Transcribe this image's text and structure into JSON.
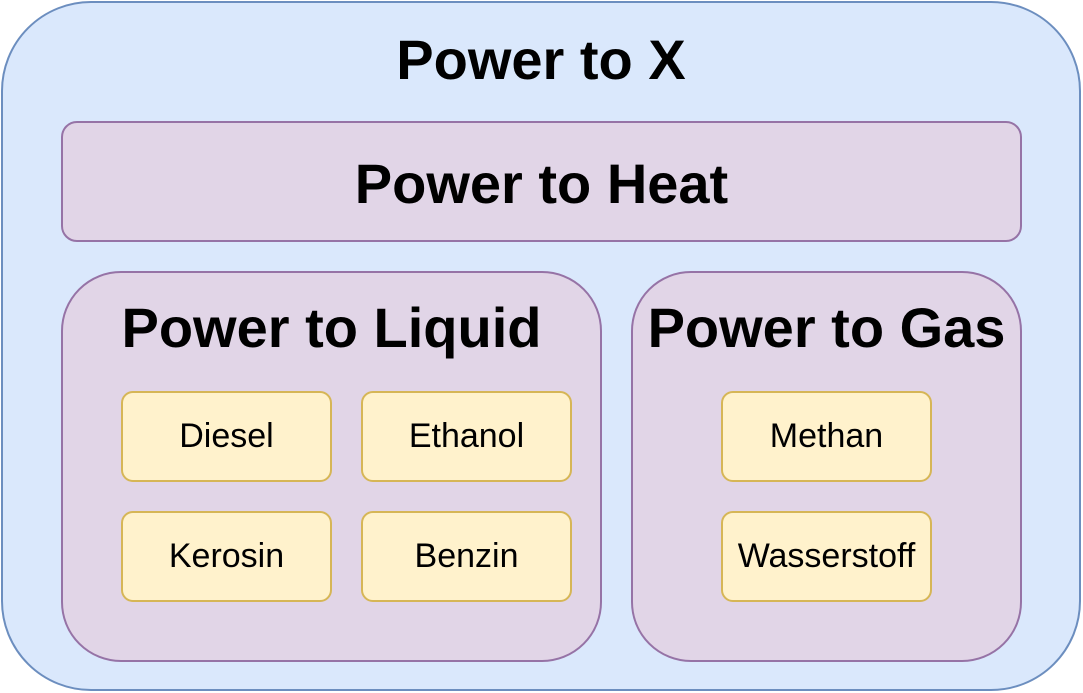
{
  "diagram": {
    "root": {
      "label": "Power to X",
      "fill": "#dae8fc",
      "stroke": "#6c8ebf"
    },
    "heat": {
      "label": "Power to Heat",
      "fill": "#e1d5e7",
      "stroke": "#9673a6"
    },
    "liquid": {
      "label": "Power to Liquid",
      "fill": "#e1d5e7",
      "stroke": "#9673a6",
      "items": [
        "Diesel",
        "Ethanol",
        "Kerosin",
        "Benzin"
      ]
    },
    "gas": {
      "label": "Power to Gas",
      "fill": "#e1d5e7",
      "stroke": "#9673a6",
      "items": [
        "Methan",
        "Wasserstoff"
      ]
    },
    "item_fill": "#fff2cc",
    "item_stroke": "#d6b656"
  }
}
